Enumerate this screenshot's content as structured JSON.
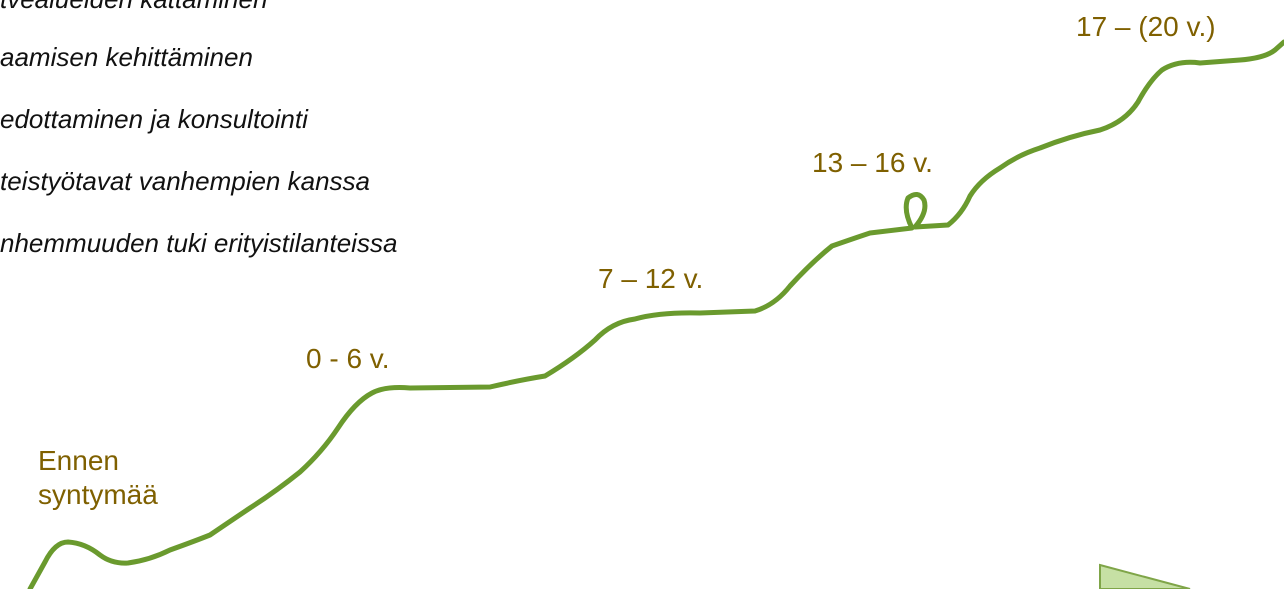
{
  "items": [
    "tvealueiden kattaminen",
    "aamisen kehittäminen",
    "edottaminen ja konsultointi",
    "teistyötavat vanhempien kanssa",
    "nhemmuuden tuki erityistilanteissa"
  ],
  "stages": [
    {
      "lines": [
        "Ennen",
        "syntymää"
      ]
    },
    {
      "lines": [
        "0 - 6 v."
      ]
    },
    {
      "lines": [
        "7 – 12 v."
      ]
    },
    {
      "lines": [
        "13 – 16 v."
      ]
    },
    {
      "lines": [
        "17 – (20 v.)"
      ]
    }
  ]
}
